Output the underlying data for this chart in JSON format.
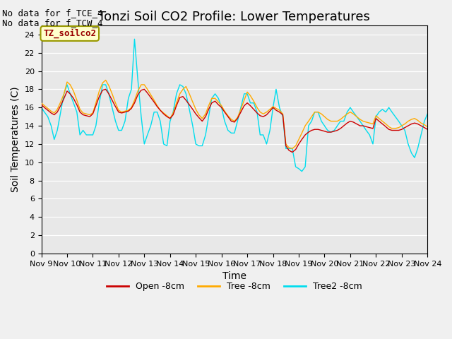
{
  "title": "Tonzi Soil CO2 Profile: Lower Temperatures",
  "xlabel": "Time",
  "ylabel": "Soil Temperatures (C)",
  "annotations": [
    "No data for f_TCE_4",
    "No data for f_TCW_4"
  ],
  "legend_label": "TZ_soilco2",
  "ylim": [
    0,
    25
  ],
  "yticks": [
    0,
    2,
    4,
    6,
    8,
    10,
    12,
    14,
    16,
    18,
    20,
    22,
    24
  ],
  "xtick_labels": [
    "Nov 9",
    "Nov 10",
    "Nov 11",
    "Nov 12",
    "Nov 13",
    "Nov 14",
    "Nov 15",
    "Nov 16",
    "Nov 17",
    "Nov 18",
    "Nov 19",
    "Nov 20",
    "Nov 21",
    "Nov 22",
    "Nov 23",
    "Nov 24"
  ],
  "series_labels": [
    "Open -8cm",
    "Tree -8cm",
    "Tree2 -8cm"
  ],
  "series_colors": [
    "#cc0000",
    "#ffaa00",
    "#00ddee"
  ],
  "bg_color": "#e8e8e8",
  "fig_color": "#f0f0f0",
  "legend_box_facecolor": "#ffffcc",
  "legend_box_edgecolor": "#999900",
  "tz_text_color": "#990000",
  "title_fontsize": 13,
  "axis_label_fontsize": 10,
  "tick_fontsize": 8,
  "annotation_fontsize": 9,
  "legend_fontsize": 9,
  "tz_legend_fontsize": 9,
  "open_x": [
    0.0,
    0.12,
    0.25,
    0.38,
    0.5,
    0.62,
    0.75,
    0.88,
    1.0,
    1.12,
    1.25,
    1.38,
    1.5,
    1.62,
    1.75,
    1.88,
    2.0,
    2.12,
    2.25,
    2.38,
    2.5,
    2.62,
    2.75,
    2.88,
    3.0,
    3.12,
    3.25,
    3.38,
    3.5,
    3.62,
    3.75,
    3.88,
    4.0,
    4.12,
    4.25,
    4.38,
    4.5,
    4.62,
    4.75,
    4.88,
    5.0,
    5.12,
    5.25,
    5.38,
    5.5,
    5.62,
    5.75,
    5.88,
    6.0,
    6.12,
    6.25,
    6.38,
    6.5,
    6.62,
    6.75,
    6.88,
    7.0,
    7.12,
    7.25,
    7.38,
    7.5,
    7.62,
    7.75,
    7.88,
    8.0,
    8.12,
    8.25,
    8.38,
    8.5,
    8.62,
    8.75,
    8.88,
    9.0,
    9.12,
    9.25,
    9.38,
    9.5,
    9.62,
    9.75,
    9.88,
    10.0,
    10.12,
    10.25,
    10.38,
    10.5,
    10.62,
    10.75,
    10.88,
    11.0,
    11.12,
    11.25,
    11.38,
    11.5,
    11.62,
    11.75,
    11.88,
    12.0,
    12.12,
    12.25,
    12.38,
    12.5,
    12.62,
    12.75,
    12.88,
    13.0,
    13.12,
    13.25,
    13.38,
    13.5,
    13.62,
    13.75,
    13.88,
    14.0,
    14.12,
    14.25,
    14.38,
    14.5,
    14.62,
    14.75,
    14.88,
    15.0
  ],
  "open_y": [
    16.3,
    16.0,
    15.7,
    15.4,
    15.2,
    15.5,
    16.2,
    17.0,
    17.8,
    17.5,
    17.0,
    16.3,
    15.5,
    15.2,
    15.1,
    15.0,
    15.3,
    16.2,
    17.2,
    17.9,
    18.0,
    17.5,
    16.8,
    16.1,
    15.5,
    15.4,
    15.5,
    15.6,
    15.9,
    16.5,
    17.4,
    17.9,
    18.0,
    17.6,
    17.1,
    16.6,
    16.1,
    15.7,
    15.3,
    15.0,
    14.8,
    15.2,
    16.2,
    17.1,
    17.2,
    16.8,
    16.3,
    15.8,
    15.3,
    14.9,
    14.5,
    15.0,
    15.8,
    16.5,
    16.7,
    16.3,
    16.0,
    15.5,
    15.0,
    14.5,
    14.4,
    14.8,
    15.5,
    16.2,
    16.5,
    16.2,
    15.8,
    15.4,
    15.1,
    15.0,
    15.2,
    15.6,
    16.0,
    15.7,
    15.5,
    15.2,
    11.8,
    11.3,
    11.1,
    11.4,
    12.0,
    12.5,
    13.0,
    13.3,
    13.5,
    13.6,
    13.6,
    13.5,
    13.4,
    13.3,
    13.3,
    13.4,
    13.5,
    13.7,
    14.0,
    14.3,
    14.5,
    14.4,
    14.2,
    14.0,
    14.0,
    13.9,
    13.8,
    13.7,
    14.8,
    14.5,
    14.2,
    13.9,
    13.6,
    13.5,
    13.5,
    13.5,
    13.6,
    13.8,
    14.0,
    14.2,
    14.3,
    14.2,
    14.0,
    13.8,
    13.6
  ],
  "tree_y": [
    16.5,
    16.2,
    15.9,
    15.6,
    15.4,
    15.8,
    16.6,
    17.5,
    18.8,
    18.5,
    17.8,
    16.8,
    15.8,
    15.4,
    15.3,
    15.2,
    15.4,
    16.5,
    17.8,
    18.7,
    19.0,
    18.4,
    17.5,
    16.5,
    15.7,
    15.5,
    15.6,
    15.7,
    16.0,
    16.8,
    17.8,
    18.5,
    18.5,
    18.0,
    17.4,
    16.8,
    16.2,
    15.7,
    15.4,
    15.1,
    14.8,
    15.4,
    16.5,
    17.5,
    18.0,
    18.3,
    17.5,
    16.6,
    15.8,
    15.2,
    14.8,
    15.3,
    16.2,
    17.0,
    17.0,
    16.6,
    16.2,
    15.6,
    15.1,
    14.7,
    14.5,
    14.9,
    15.8,
    16.8,
    17.7,
    17.3,
    16.7,
    16.0,
    15.5,
    15.3,
    15.5,
    15.8,
    16.1,
    15.9,
    15.7,
    15.3,
    12.0,
    11.6,
    11.5,
    11.8,
    12.5,
    13.2,
    14.0,
    14.5,
    15.0,
    15.5,
    15.5,
    15.3,
    15.0,
    14.7,
    14.5,
    14.5,
    14.5,
    14.7,
    15.0,
    15.3,
    15.5,
    15.3,
    15.0,
    14.7,
    14.5,
    14.4,
    14.3,
    14.2,
    15.1,
    14.8,
    14.5,
    14.2,
    13.9,
    13.7,
    13.7,
    13.8,
    14.0,
    14.2,
    14.5,
    14.7,
    14.8,
    14.6,
    14.3,
    14.1,
    13.9
  ],
  "tree2_y": [
    16.0,
    15.5,
    15.0,
    14.0,
    12.5,
    13.5,
    15.5,
    17.5,
    18.5,
    17.5,
    16.5,
    15.5,
    13.0,
    13.5,
    13.0,
    13.0,
    13.0,
    14.0,
    16.5,
    18.5,
    18.5,
    17.5,
    16.0,
    14.5,
    13.5,
    13.5,
    14.5,
    17.0,
    18.0,
    23.5,
    19.0,
    15.0,
    12.0,
    13.0,
    14.0,
    15.5,
    15.5,
    14.5,
    12.0,
    11.8,
    14.5,
    15.5,
    17.5,
    18.5,
    18.3,
    17.5,
    15.8,
    14.0,
    12.0,
    11.8,
    11.8,
    13.0,
    15.0,
    17.0,
    17.5,
    17.0,
    16.0,
    14.5,
    13.5,
    13.2,
    13.2,
    14.5,
    16.0,
    17.5,
    17.5,
    16.5,
    16.5,
    15.5,
    13.0,
    13.0,
    12.0,
    13.5,
    16.0,
    18.0,
    16.0,
    15.0,
    11.5,
    11.5,
    11.5,
    9.5,
    9.3,
    9.0,
    9.5,
    14.0,
    14.5,
    15.5,
    15.5,
    14.5,
    14.0,
    13.5,
    13.3,
    13.5,
    14.0,
    14.5,
    14.5,
    15.5,
    16.0,
    15.5,
    15.0,
    14.5,
    14.0,
    13.5,
    13.0,
    12.0,
    15.0,
    15.5,
    15.8,
    15.5,
    16.0,
    15.5,
    15.0,
    14.5,
    14.0,
    13.5,
    12.0,
    11.0,
    10.5,
    11.5,
    13.0,
    14.5,
    15.3
  ]
}
